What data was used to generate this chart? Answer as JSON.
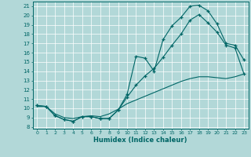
{
  "xlabel": "Humidex (Indice chaleur)",
  "xlim": [
    -0.5,
    23.5
  ],
  "ylim": [
    7.8,
    21.5
  ],
  "xticks": [
    0,
    1,
    2,
    3,
    4,
    5,
    6,
    7,
    8,
    9,
    10,
    11,
    12,
    13,
    14,
    15,
    16,
    17,
    18,
    19,
    20,
    21,
    22,
    23
  ],
  "yticks": [
    8,
    9,
    10,
    11,
    12,
    13,
    14,
    15,
    16,
    17,
    18,
    19,
    20,
    21
  ],
  "bg_color": "#b2d8d8",
  "line_color": "#006666",
  "grid_color": "#ffffff",
  "curve1_x": [
    0,
    1,
    2,
    3,
    4,
    5,
    6,
    7,
    8,
    9,
    10,
    11,
    12,
    13,
    14,
    15,
    16,
    17,
    18,
    19,
    20,
    21,
    22,
    23
  ],
  "curve1_y": [
    10.3,
    10.2,
    9.2,
    8.8,
    8.6,
    9.1,
    9.1,
    8.9,
    8.9,
    9.8,
    11.5,
    15.6,
    15.4,
    14.0,
    17.4,
    18.9,
    19.8,
    21.0,
    21.1,
    20.5,
    19.1,
    17.0,
    16.8,
    15.2
  ],
  "curve2_x": [
    0,
    1,
    2,
    3,
    4,
    5,
    6,
    7,
    8,
    9,
    10,
    11,
    12,
    13,
    14,
    15,
    16,
    17,
    18,
    19,
    20,
    21,
    22,
    23
  ],
  "curve2_y": [
    10.3,
    10.2,
    9.2,
    8.8,
    8.6,
    9.1,
    9.1,
    8.9,
    8.9,
    9.8,
    11.2,
    12.5,
    13.5,
    14.3,
    15.5,
    16.8,
    18.0,
    19.5,
    20.1,
    19.2,
    18.2,
    16.8,
    16.5,
    13.7
  ],
  "curve3_x": [
    0,
    1,
    2,
    3,
    4,
    5,
    6,
    7,
    8,
    9,
    10,
    11,
    12,
    13,
    14,
    15,
    16,
    17,
    18,
    19,
    20,
    21,
    22,
    23
  ],
  "curve3_y": [
    10.2,
    10.2,
    9.4,
    9.0,
    8.9,
    9.1,
    9.2,
    9.1,
    9.4,
    9.9,
    10.5,
    10.9,
    11.3,
    11.7,
    12.1,
    12.5,
    12.9,
    13.2,
    13.4,
    13.4,
    13.3,
    13.2,
    13.4,
    13.7
  ]
}
